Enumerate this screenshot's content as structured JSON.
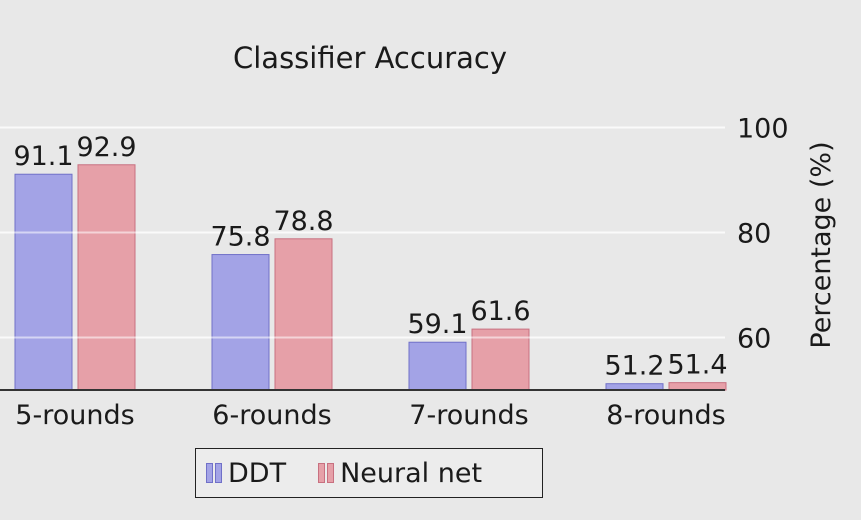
{
  "chart_data": {
    "type": "bar",
    "title": "Classifier Accuracy",
    "categories": [
      "5-rounds",
      "6-rounds",
      "7-rounds",
      "8-rounds"
    ],
    "series": [
      {
        "name": "DDT",
        "values": [
          91.1,
          75.8,
          59.1,
          51.2
        ],
        "color": "#a3a3e6",
        "edge": "#7070c8"
      },
      {
        "name": "Neural net",
        "values": [
          92.9,
          78.8,
          61.6,
          51.4
        ],
        "color": "#e6a0a8",
        "edge": "#c87080"
      }
    ],
    "value_labels": {
      "DDT": [
        "91.1",
        "75.8",
        "59.1",
        "51.2"
      ],
      "Neural net": [
        "92.9",
        "78.8",
        "61.6",
        "51.4"
      ]
    },
    "ylabel": "Percentage (%)",
    "yticks": [
      "60",
      "80",
      "100"
    ],
    "ylim": [
      50,
      100
    ],
    "y_axis_side": "right",
    "grid": "horizontal",
    "legend_position": "bottom"
  }
}
